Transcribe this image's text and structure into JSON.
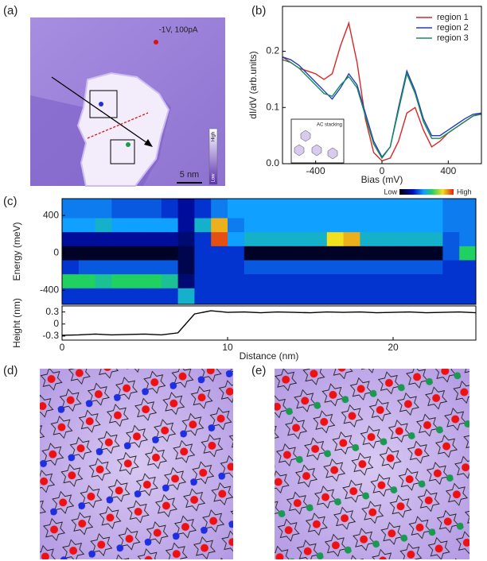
{
  "panels": {
    "a": {
      "label": "(a)",
      "annotation": "-1V, 100pA",
      "scale_bar": "5 nm",
      "colorbar": {
        "high": "High",
        "low": "Low"
      }
    },
    "b": {
      "label": "(b)",
      "inset_label": "AC stacking"
    },
    "c": {
      "label": "(c)"
    },
    "d": {
      "label": "(d)"
    },
    "e": {
      "label": "(e)"
    }
  },
  "chart_data": [
    {
      "type": "line",
      "xlabel": "Bias (mV)",
      "ylabel": "dI/dV (arb.units)",
      "x": [
        -600,
        -550,
        -500,
        -450,
        -400,
        -350,
        -300,
        -250,
        -200,
        -150,
        -100,
        -50,
        0,
        50,
        100,
        150,
        200,
        250,
        300,
        350,
        400,
        450,
        500,
        550,
        600
      ],
      "series": [
        {
          "name": "region 1",
          "color": "#d62728",
          "values": [
            0.19,
            0.18,
            0.17,
            0.165,
            0.16,
            0.15,
            0.16,
            0.21,
            0.25,
            0.18,
            0.08,
            0.02,
            0.005,
            0.01,
            0.04,
            0.09,
            0.1,
            0.06,
            0.03,
            0.04,
            0.055,
            0.065,
            0.075,
            0.085,
            0.09
          ]
        },
        {
          "name": "region 2",
          "color": "#1f3fbf",
          "values": [
            0.19,
            0.185,
            0.175,
            0.16,
            0.145,
            0.13,
            0.115,
            0.135,
            0.16,
            0.14,
            0.09,
            0.04,
            0.012,
            0.03,
            0.1,
            0.165,
            0.13,
            0.08,
            0.05,
            0.05,
            0.06,
            0.07,
            0.08,
            0.088,
            0.09
          ]
        },
        {
          "name": "region 3",
          "color": "#1a8a5a",
          "values": [
            0.185,
            0.18,
            0.17,
            0.155,
            0.14,
            0.125,
            0.12,
            0.14,
            0.155,
            0.135,
            0.085,
            0.035,
            0.01,
            0.03,
            0.095,
            0.16,
            0.125,
            0.075,
            0.045,
            0.045,
            0.055,
            0.065,
            0.075,
            0.085,
            0.088
          ]
        }
      ],
      "xlim": [
        -600,
        600
      ],
      "xticks": [
        -400,
        0,
        400
      ],
      "ylim": [
        0,
        0.28
      ],
      "yticks": [
        {
          "value": 0,
          "label": "0.0"
        },
        0.1,
        0.2
      ],
      "legend": "upper right"
    },
    {
      "type": "heatmap",
      "ylabel": "Energy (meV)",
      "colormap": "jet",
      "colorbar": {
        "low": "Low",
        "high": "High"
      },
      "xbins": [
        0,
        1,
        2,
        3,
        4,
        5,
        6,
        7,
        8,
        9,
        10,
        11,
        12,
        13,
        14,
        15,
        16,
        17,
        18,
        19,
        20,
        21,
        22,
        23,
        24,
        25
      ],
      "ybins": [
        -550,
        -375,
        -225,
        -75,
        75,
        225,
        375,
        580
      ],
      "z": [
        [
          0.3,
          0.3,
          0.3,
          0.3,
          0.3,
          0.3,
          0.3,
          0.5,
          0.3,
          0.3,
          0.3,
          0.3,
          0.3,
          0.3,
          0.3,
          0.3,
          0.3,
          0.3,
          0.3,
          0.3,
          0.3,
          0.3,
          0.3,
          0.3,
          0.3
        ],
        [
          0.6,
          0.6,
          0.55,
          0.6,
          0.6,
          0.6,
          0.55,
          0.15,
          0.3,
          0.3,
          0.3,
          0.3,
          0.3,
          0.3,
          0.3,
          0.3,
          0.3,
          0.3,
          0.3,
          0.3,
          0.3,
          0.3,
          0.3,
          0.3,
          0.3
        ],
        [
          0.3,
          0.35,
          0.35,
          0.35,
          0.35,
          0.35,
          0.35,
          0.1,
          0.3,
          0.3,
          0.3,
          0.35,
          0.35,
          0.35,
          0.35,
          0.35,
          0.35,
          0.35,
          0.35,
          0.35,
          0.35,
          0.35,
          0.35,
          0.3,
          0.3
        ],
        [
          0.05,
          0.05,
          0.05,
          0.05,
          0.05,
          0.05,
          0.05,
          0.1,
          0.3,
          0.3,
          0.3,
          0.05,
          0.05,
          0.05,
          0.05,
          0.05,
          0.05,
          0.05,
          0.05,
          0.05,
          0.05,
          0.05,
          0.05,
          0.35,
          0.6
        ],
        [
          0.2,
          0.2,
          0.2,
          0.2,
          0.2,
          0.2,
          0.2,
          0.15,
          0.3,
          0.95,
          0.45,
          0.5,
          0.5,
          0.5,
          0.5,
          0.5,
          0.8,
          0.85,
          0.5,
          0.5,
          0.5,
          0.5,
          0.5,
          0.35,
          0.4
        ],
        [
          0.45,
          0.45,
          0.5,
          0.45,
          0.45,
          0.45,
          0.45,
          0.2,
          0.5,
          0.85,
          0.4,
          0.45,
          0.45,
          0.45,
          0.45,
          0.45,
          0.45,
          0.45,
          0.45,
          0.45,
          0.45,
          0.45,
          0.45,
          0.4,
          0.4
        ],
        [
          0.4,
          0.4,
          0.4,
          0.35,
          0.35,
          0.35,
          0.3,
          0.2,
          0.3,
          0.4,
          0.45,
          0.45,
          0.45,
          0.45,
          0.45,
          0.45,
          0.45,
          0.45,
          0.45,
          0.45,
          0.45,
          0.45,
          0.45,
          0.4,
          0.4
        ]
      ],
      "xlim": [
        0,
        25
      ],
      "ylim": [
        -550,
        580
      ],
      "yticks": [
        -400,
        0,
        400
      ]
    },
    {
      "type": "line",
      "xlabel": "Distance (nm)",
      "ylabel": "Height (nm)",
      "x": [
        0,
        1,
        2,
        3,
        4,
        5,
        6,
        7,
        8,
        9,
        10,
        11,
        12,
        13,
        14,
        15,
        16,
        17,
        18,
        19,
        20,
        21,
        22,
        23,
        24,
        25
      ],
      "values": [
        -0.28,
        -0.27,
        -0.25,
        -0.27,
        -0.26,
        -0.25,
        -0.27,
        -0.22,
        0.25,
        0.33,
        0.29,
        0.3,
        0.28,
        0.3,
        0.29,
        0.28,
        0.3,
        0.29,
        0.3,
        0.28,
        0.29,
        0.3,
        0.28,
        0.29,
        0.3,
        0.28
      ],
      "color": "#000000",
      "xlim": [
        0,
        25
      ],
      "xticks": [
        0,
        10,
        20
      ],
      "ylim": [
        -0.4,
        0.45
      ],
      "yticks": [
        -0.3,
        0,
        0.3
      ]
    }
  ]
}
